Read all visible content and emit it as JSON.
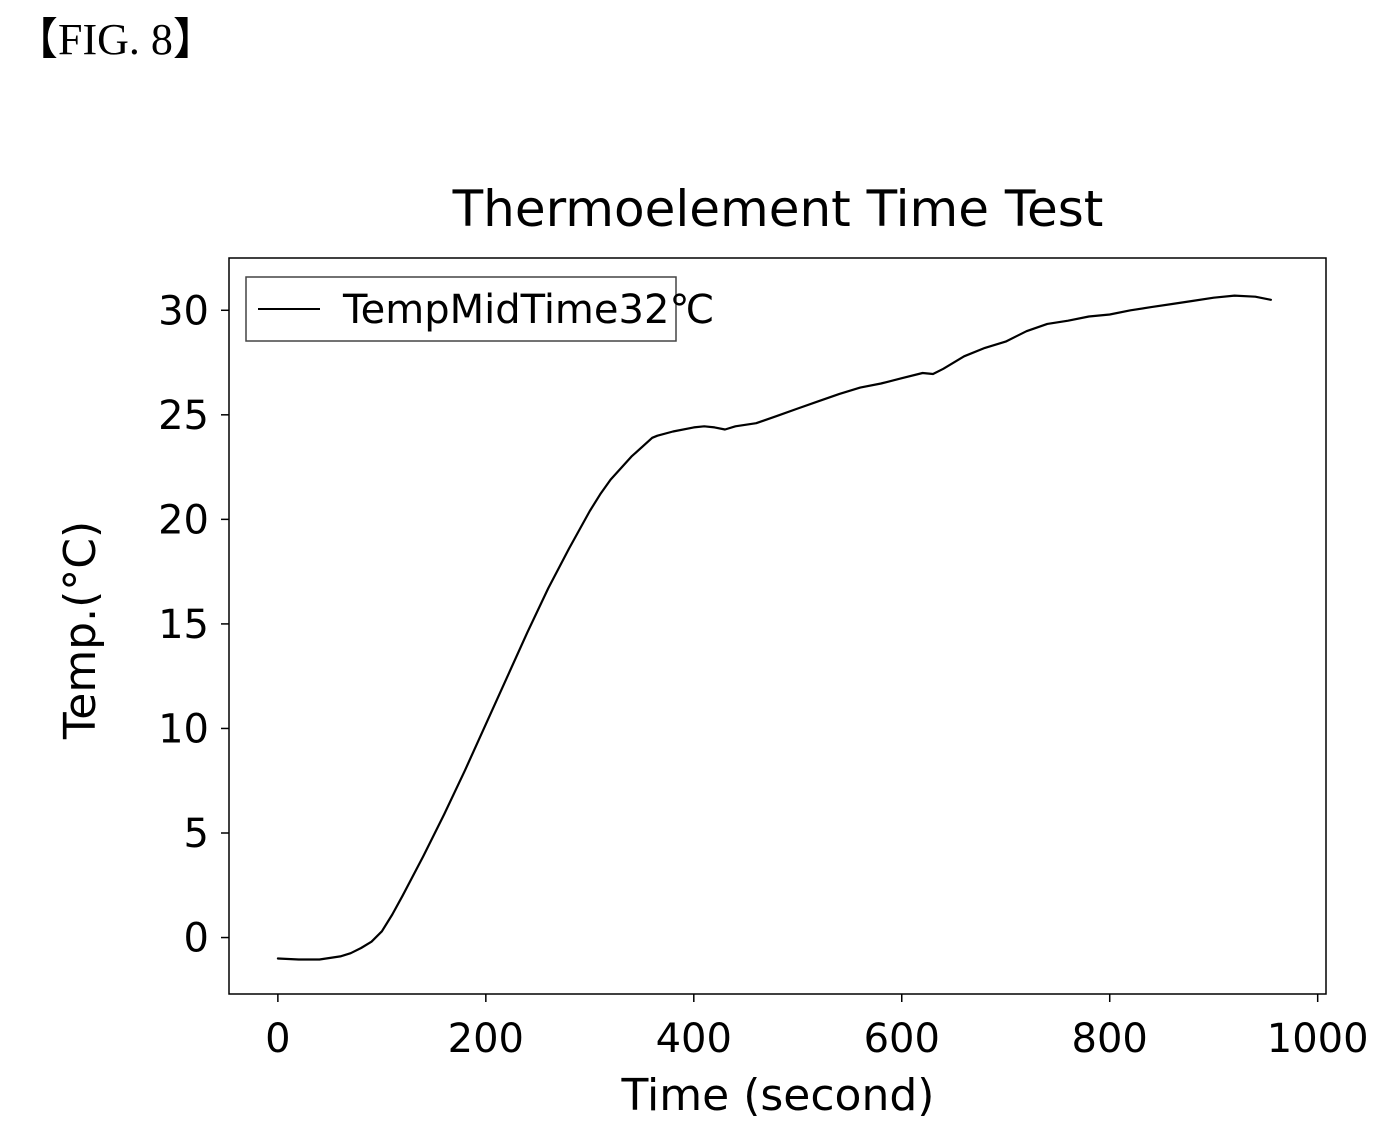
{
  "figure_label": "【FIG. 8】",
  "chart_data": {
    "type": "line",
    "title": "Thermoelement Time Test",
    "xlabel": "Time (second)",
    "ylabel": "Temp.(°C)",
    "xlim": [
      -47,
      1008
    ],
    "ylim": [
      -2.7,
      32.5
    ],
    "xticks": [
      0,
      200,
      400,
      600,
      800,
      1000
    ],
    "yticks": [
      0,
      5,
      10,
      15,
      20,
      25,
      30
    ],
    "xtick_labels": [
      "0",
      "200",
      "400",
      "600",
      "800",
      "1000"
    ],
    "ytick_labels": [
      "0",
      "5",
      "10",
      "15",
      "20",
      "25",
      "30"
    ],
    "grid": false,
    "legend_position": "top-left",
    "series": [
      {
        "name": "TempMidTime32℃",
        "color": "#000000",
        "x": [
          0,
          20,
          40,
          60,
          70,
          80,
          90,
          100,
          110,
          120,
          140,
          160,
          180,
          200,
          220,
          240,
          260,
          280,
          300,
          310,
          320,
          340,
          360,
          365,
          380,
          400,
          410,
          420,
          430,
          440,
          460,
          480,
          500,
          520,
          540,
          560,
          580,
          600,
          620,
          630,
          640,
          660,
          680,
          700,
          720,
          740,
          760,
          780,
          800,
          820,
          840,
          860,
          880,
          900,
          920,
          940,
          955
        ],
        "y": [
          -1.0,
          -1.05,
          -1.05,
          -0.9,
          -0.75,
          -0.5,
          -0.2,
          0.3,
          1.1,
          2.0,
          3.9,
          5.9,
          8.0,
          10.2,
          12.4,
          14.6,
          16.7,
          18.6,
          20.4,
          21.2,
          21.9,
          23.0,
          23.9,
          24.0,
          24.2,
          24.4,
          24.45,
          24.4,
          24.3,
          24.45,
          24.6,
          24.95,
          25.3,
          25.65,
          26.0,
          26.3,
          26.5,
          26.75,
          27.0,
          26.95,
          27.2,
          27.8,
          28.2,
          28.5,
          29.0,
          29.35,
          29.5,
          29.7,
          29.8,
          30.0,
          30.15,
          30.3,
          30.45,
          30.6,
          30.7,
          30.65,
          30.5
        ]
      }
    ]
  }
}
